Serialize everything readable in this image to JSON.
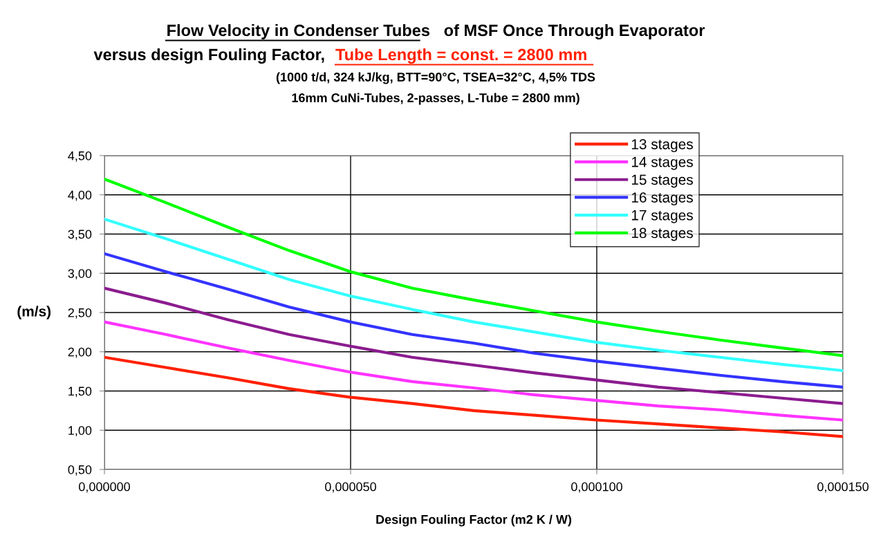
{
  "chart_data": {
    "type": "line",
    "title": "Flow Velocity in Condenser Tubes   of MSF Once Through Evaporator\nversus design Fouling Factor,",
    "subtitle": "(1000 t/d, 324 kJ/kg, BTT=90°C, TSEA=32°C, 4,5% TDS\n16mm CuNi-Tubes, 2-passes, L-Tube = 2800 mm)",
    "annotations": [
      "Tube Length = const. = 2800 mm "
    ],
    "xlabel": "Design Fouling Factor (m2 K / W)",
    "ylabel": "(m/s)",
    "x": [
      0,
      1.25e-05,
      2.5e-05,
      3.75e-05,
      5e-05,
      6.25e-05,
      7.5e-05,
      8.75e-05,
      0.0001,
      0.0001125,
      0.000125,
      0.0001375,
      0.00015
    ],
    "series": [
      {
        "name": "13 stages",
        "color": "#ff2000",
        "values": [
          1.93,
          1.8,
          1.67,
          1.53,
          1.42,
          1.34,
          1.25,
          1.19,
          1.13,
          1.08,
          1.03,
          0.98,
          0.92
        ]
      },
      {
        "name": "14 stages",
        "color": "#ff33ff",
        "values": [
          2.38,
          2.22,
          2.05,
          1.89,
          1.74,
          1.62,
          1.54,
          1.45,
          1.38,
          1.31,
          1.26,
          1.19,
          1.13
        ]
      },
      {
        "name": "15 stages",
        "color": "#8b1c8f",
        "values": [
          2.81,
          2.62,
          2.41,
          2.22,
          2.07,
          1.93,
          1.83,
          1.73,
          1.64,
          1.55,
          1.48,
          1.41,
          1.34
        ]
      },
      {
        "name": "16 stages",
        "color": "#3333ff",
        "values": [
          3.25,
          3.02,
          2.8,
          2.57,
          2.38,
          2.22,
          2.11,
          1.98,
          1.88,
          1.79,
          1.7,
          1.62,
          1.55
        ]
      },
      {
        "name": "17 stages",
        "color": "#33ffff",
        "values": [
          3.69,
          3.44,
          3.18,
          2.92,
          2.71,
          2.54,
          2.38,
          2.25,
          2.12,
          2.02,
          1.93,
          1.84,
          1.76
        ]
      },
      {
        "name": "18 stages",
        "color": "#00ff00",
        "values": [
          4.2,
          3.9,
          3.59,
          3.29,
          3.02,
          2.81,
          2.66,
          2.52,
          2.38,
          2.26,
          2.15,
          2.05,
          1.95
        ]
      }
    ],
    "xlim": [
      0,
      0.00015
    ],
    "xticks": [
      {
        "value": 0,
        "label": "0,000000"
      },
      {
        "value": 5e-05,
        "label": "0,000050"
      },
      {
        "value": 0.0001,
        "label": "0,000100"
      },
      {
        "value": 0.00015,
        "label": "0,000150"
      }
    ],
    "ylim": [
      0.5,
      4.5
    ],
    "yticks": [
      {
        "value": 0.5,
        "label": "0,50"
      },
      {
        "value": 1.0,
        "label": "1,00"
      },
      {
        "value": 1.5,
        "label": "1,50"
      },
      {
        "value": 2.0,
        "label": "2,00"
      },
      {
        "value": 2.5,
        "label": "2,50"
      },
      {
        "value": 3.0,
        "label": "3,00"
      },
      {
        "value": 3.5,
        "label": "3,50"
      },
      {
        "value": 4.0,
        "label": "4,00"
      },
      {
        "value": 4.5,
        "label": "4,50"
      }
    ],
    "grid": true,
    "legend": "top right",
    "marker": "none",
    "line_style": "solid"
  }
}
